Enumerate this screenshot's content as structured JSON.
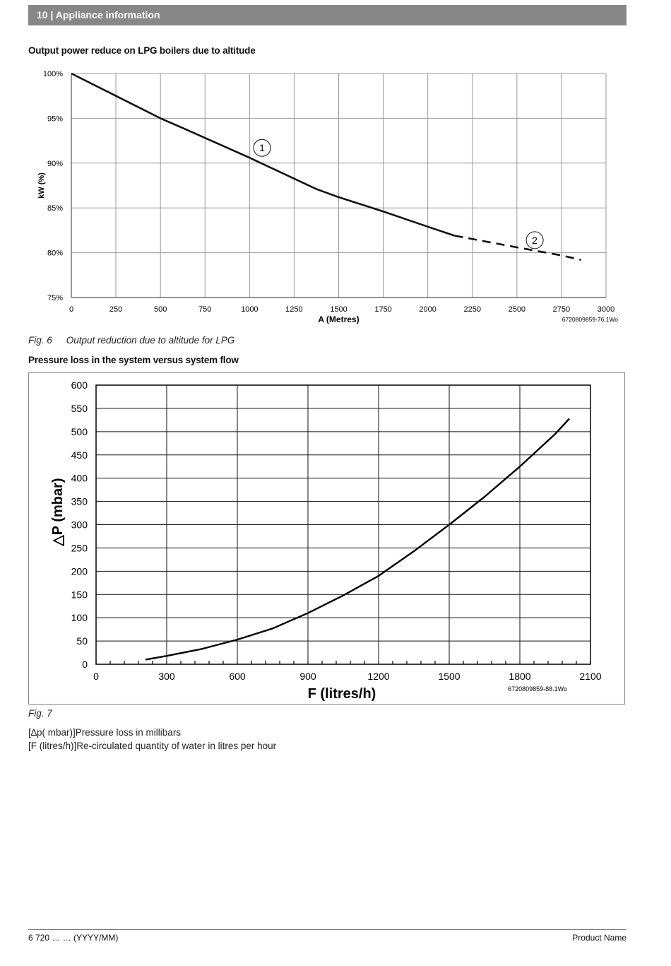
{
  "header": {
    "page_number": "10",
    "separator": "|",
    "section": "Appliance information"
  },
  "chart1_heading": "Output power reduce on LPG boilers due to altitude",
  "chart2_heading": "Pressure loss in the system versus system flow",
  "fig6": {
    "number": "Fig. 6",
    "text": "Output reduction due to altitude for LPG"
  },
  "fig7": {
    "number": "Fig. 7"
  },
  "legend": [
    "[∆p( mbar)]Pressure loss in millibars",
    "[F (litres/h)]Re-circulated quantity of water in litres per hour"
  ],
  "footer": {
    "left": "6 720 … … (YYYY/MM)",
    "right": "Product Name"
  },
  "chart_data": [
    {
      "type": "line",
      "title": "Output power reduce on LPG boilers due to altitude",
      "xlabel": "A (Metres)",
      "ylabel": "kW (%)",
      "xlim": [
        0,
        3000
      ],
      "ylim": [
        75,
        100
      ],
      "x_ticks": [
        "0",
        "250",
        "500",
        "750",
        "1000",
        "1250",
        "1500",
        "1750",
        "2000",
        "2250",
        "2500",
        "2750",
        "3000"
      ],
      "y_ticks": [
        "75%",
        "80%",
        "85%",
        "90%",
        "95%",
        "100%"
      ],
      "grid": true,
      "figure_code": "6720809859-76.1Wo",
      "series": [
        {
          "style": "solid",
          "marker_label": "1",
          "x": [
            0,
            250,
            500,
            650,
            1000,
            1375,
            1500,
            1750,
            2000,
            2150
          ],
          "y": [
            100,
            97.5,
            95,
            93.7,
            90.6,
            87.1,
            86.2,
            84.6,
            82.9,
            81.9
          ]
        },
        {
          "style": "dashed",
          "marker_label": "2",
          "x": [
            2150,
            2500,
            2750,
            2860
          ],
          "y": [
            81.9,
            80.6,
            79.7,
            79.2
          ]
        }
      ],
      "callouts": [
        {
          "label": "1",
          "x": 1070,
          "y": 91.7
        },
        {
          "label": "2",
          "x": 2600,
          "y": 81.4
        }
      ]
    },
    {
      "type": "line",
      "xlabel": "F (litres/h)",
      "ylabel": "△P  (mbar)",
      "xlim": [
        0,
        2100
      ],
      "ylim": [
        0,
        600
      ],
      "x_ticks": [
        "0",
        "300",
        "600",
        "900",
        "1200",
        "1500",
        "1800",
        "2100"
      ],
      "y_ticks": [
        "0",
        "50",
        "100",
        "150",
        "200",
        "250",
        "300",
        "350",
        "400",
        "450",
        "500",
        "550",
        "600"
      ],
      "grid": true,
      "figure_code": "6720809859-88.1Wo",
      "series": [
        {
          "style": "solid",
          "x": [
            210,
            300,
            450,
            600,
            750,
            900,
            1050,
            1200,
            1350,
            1500,
            1650,
            1800,
            1950,
            2010
          ],
          "y": [
            10,
            18,
            33,
            53,
            77,
            110,
            148,
            190,
            243,
            300,
            360,
            425,
            495,
            528
          ]
        }
      ]
    }
  ]
}
